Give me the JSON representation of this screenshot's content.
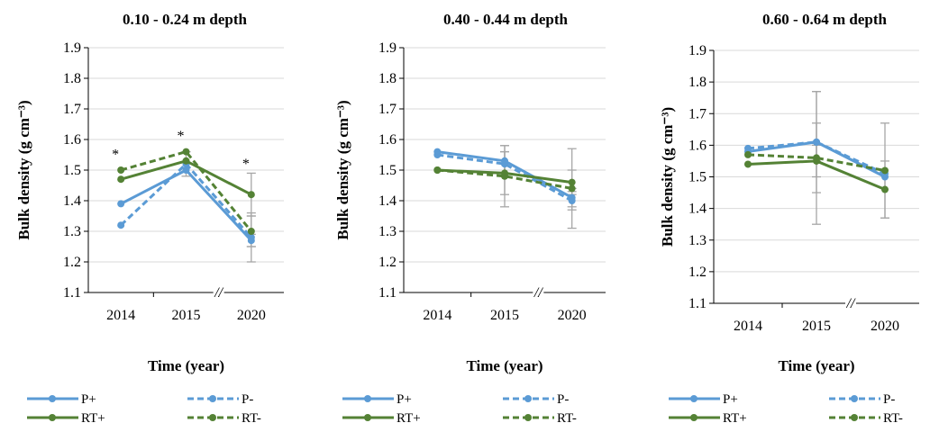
{
  "chart_data": [
    {
      "type": "line",
      "title": "0.10 - 0.24 m depth",
      "xlabel": "Time (year)",
      "ylabel": "Bulk density (g cm⁻³)",
      "categories": [
        "2014",
        "2015",
        "2020"
      ],
      "axis_break": "//",
      "ylim": [
        1.1,
        1.9
      ],
      "yticks": [
        "1.1",
        "1.2",
        "1.3",
        "1.4",
        "1.5",
        "1.6",
        "1.7",
        "1.8",
        "1.9"
      ],
      "grid": true,
      "legend_position": "bottom",
      "series": [
        {
          "name": "P+",
          "values": [
            1.39,
            1.5,
            1.27
          ],
          "color": "#5b9bd5",
          "dashed": false,
          "errors": [
            null,
            null,
            0.02
          ]
        },
        {
          "name": "P-",
          "values": [
            1.32,
            1.52,
            1.28
          ],
          "color": "#5b9bd5",
          "dashed": true,
          "errors": [
            null,
            0.04,
            0.08
          ]
        },
        {
          "name": "RT+",
          "values": [
            1.47,
            1.53,
            1.42
          ],
          "color": "#548235",
          "dashed": false,
          "errors": [
            null,
            null,
            0.07
          ]
        },
        {
          "name": "RT-",
          "values": [
            1.5,
            1.56,
            1.3
          ],
          "color": "#548235",
          "dashed": true,
          "errors": [
            null,
            null,
            0.05
          ]
        }
      ],
      "annotations": [
        {
          "text": "*",
          "category": "2014",
          "y": 1.56
        },
        {
          "text": "*",
          "category": "2015",
          "y": 1.62
        },
        {
          "text": "*",
          "category": "2020",
          "y": 1.53
        }
      ]
    },
    {
      "type": "line",
      "title": "0.40 - 0.44 m depth",
      "xlabel": "Time (year)",
      "ylabel": "Bulk density (g cm⁻³)",
      "categories": [
        "2014",
        "2015",
        "2020"
      ],
      "axis_break": "//",
      "ylim": [
        1.1,
        1.9
      ],
      "yticks": [
        "1.1",
        "1.2",
        "1.3",
        "1.4",
        "1.5",
        "1.6",
        "1.7",
        "1.8",
        "1.9"
      ],
      "grid": true,
      "legend_position": "bottom",
      "series": [
        {
          "name": "P+",
          "values": [
            1.56,
            1.53,
            1.41
          ],
          "color": "#5b9bd5",
          "dashed": false,
          "errors": [
            null,
            0.05,
            0.03
          ]
        },
        {
          "name": "P-",
          "values": [
            1.55,
            1.52,
            1.4
          ],
          "color": "#5b9bd5",
          "dashed": true,
          "errors": [
            null,
            0.04,
            0.03
          ]
        },
        {
          "name": "RT+",
          "values": [
            1.5,
            1.49,
            1.46
          ],
          "color": "#548235",
          "dashed": false,
          "errors": [
            null,
            0.07,
            0.04
          ]
        },
        {
          "name": "RT-",
          "values": [
            1.5,
            1.48,
            1.44
          ],
          "color": "#548235",
          "dashed": true,
          "errors": [
            null,
            0.1,
            0.13
          ]
        }
      ],
      "annotations": []
    },
    {
      "type": "line",
      "title": "0.60 - 0.64 m depth",
      "xlabel": "Time (year)",
      "ylabel": "Bulk density (g cm⁻³)",
      "categories": [
        "2014",
        "2015",
        "2020"
      ],
      "axis_break": "//",
      "ylim": [
        1.1,
        1.9
      ],
      "yticks": [
        "1.1",
        "1.2",
        "1.3",
        "1.4",
        "1.5",
        "1.6",
        "1.7",
        "1.8",
        "1.9"
      ],
      "grid": true,
      "legend_position": "bottom",
      "series": [
        {
          "name": "P+",
          "values": [
            1.58,
            1.61,
            1.5
          ],
          "color": "#5b9bd5",
          "dashed": false,
          "errors": [
            null,
            0.06,
            null
          ]
        },
        {
          "name": "P-",
          "values": [
            1.59,
            1.61,
            1.51
          ],
          "color": "#5b9bd5",
          "dashed": true,
          "errors": [
            null,
            0.16,
            null
          ]
        },
        {
          "name": "RT+",
          "values": [
            1.54,
            1.55,
            1.46
          ],
          "color": "#548235",
          "dashed": false,
          "errors": [
            null,
            0.05,
            0.09
          ]
        },
        {
          "name": "RT-",
          "values": [
            1.57,
            1.56,
            1.52
          ],
          "color": "#548235",
          "dashed": true,
          "errors": [
            null,
            0.21,
            0.15
          ]
        }
      ],
      "annotations": []
    }
  ]
}
